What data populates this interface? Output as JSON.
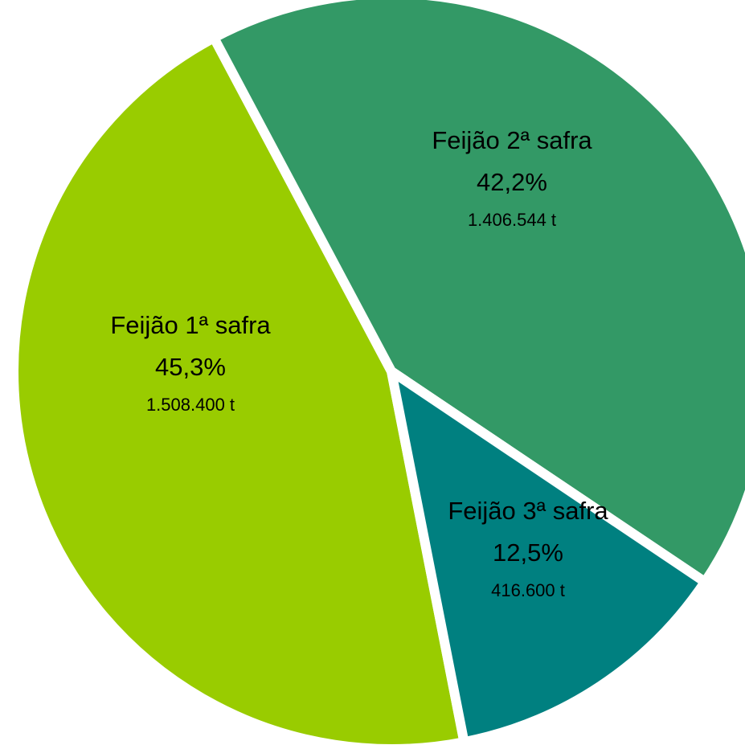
{
  "chart_data": {
    "type": "pie",
    "categories": [
      "Feijão 1ª safra",
      "Feijão 2ª safra",
      "Feijão 3ª safra"
    ],
    "values": [
      45.3,
      42.2,
      12.5
    ],
    "value_labels": [
      "45,3%",
      "42,2%",
      "12,5%"
    ],
    "amounts": [
      1508400,
      1406544,
      416600
    ],
    "amount_labels": [
      "1.508.400 t",
      "1.406.544 t",
      "416.600 t"
    ],
    "colors": [
      "#99cc00",
      "#339966",
      "#008080"
    ]
  }
}
